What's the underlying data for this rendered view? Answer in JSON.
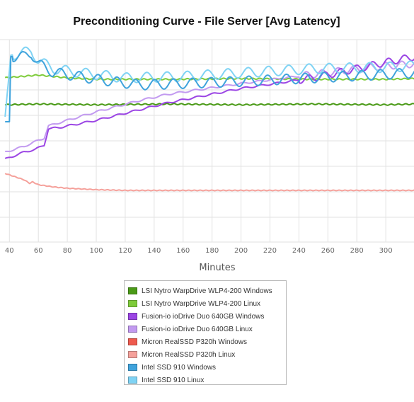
{
  "chart_data": {
    "type": "line",
    "title": "Preconditioning Curve - File Server [Avg Latency]",
    "xlabel": "Minutes",
    "ylabel": "",
    "x_ticks": [
      40,
      60,
      80,
      100,
      120,
      140,
      160,
      180,
      200,
      220,
      240,
      260,
      280,
      300
    ],
    "grid": true,
    "legend_position": "bottom",
    "series": [
      {
        "name": "LSI Nytro WarpDrive WLP4-200 Windows",
        "color": "#4a9a17",
        "points": [
          [
            37,
            148
          ],
          [
            60,
            147
          ],
          [
            100,
            148
          ],
          [
            150,
            147
          ],
          [
            200,
            148
          ],
          [
            250,
            147
          ],
          [
            300,
            148
          ],
          [
            320,
            147
          ]
        ]
      },
      {
        "name": "LSI Nytro WarpDrive WLP4-200 Linux",
        "color": "#7ecb3a",
        "points": [
          [
            37,
            110
          ],
          [
            60,
            106
          ],
          [
            80,
            110
          ],
          [
            100,
            112
          ],
          [
            150,
            112
          ],
          [
            200,
            111
          ],
          [
            250,
            112
          ],
          [
            300,
            112
          ],
          [
            320,
            111
          ]
        ]
      },
      {
        "name": "Fusion-io ioDrive Duo 640GB Windows",
        "color": "#9b45e4",
        "points": [
          [
            37,
            225
          ],
          [
            50,
            215
          ],
          [
            58,
            211
          ],
          [
            64,
            205
          ],
          [
            67,
            182
          ],
          [
            75,
            180
          ],
          [
            100,
            170
          ],
          [
            150,
            145
          ],
          [
            200,
            125
          ],
          [
            250,
            110
          ],
          [
            280,
            97
          ],
          [
            300,
            88
          ],
          [
            320,
            80
          ]
        ]
      },
      {
        "name": "Fusion-io ioDrive Duo 640GB Linux",
        "color": "#c29af0",
        "points": [
          [
            37,
            215
          ],
          [
            50,
            207
          ],
          [
            58,
            200
          ],
          [
            64,
            195
          ],
          [
            67,
            178
          ],
          [
            80,
            170
          ],
          [
            100,
            158
          ],
          [
            130,
            142
          ],
          [
            150,
            133
          ],
          [
            200,
            118
          ],
          [
            250,
            105
          ],
          [
            290,
            95
          ],
          [
            320,
            90
          ]
        ]
      },
      {
        "name": "Micron RealSSD P320h Windows",
        "color": "#ee5a4e",
        "points": []
      },
      {
        "name": "Micron RealSSD P320h Linux",
        "color": "#f5a19b",
        "points": [
          [
            37,
            245
          ],
          [
            50,
            254
          ],
          [
            54,
            259
          ],
          [
            56,
            257
          ],
          [
            60,
            261
          ],
          [
            70,
            264
          ],
          [
            80,
            266
          ],
          [
            100,
            268
          ],
          [
            120,
            269
          ],
          [
            200,
            269
          ],
          [
            300,
            269
          ],
          [
            320,
            269
          ]
        ]
      },
      {
        "name": "Intel SSD 910 Windows",
        "color": "#3fa3dc",
        "points": [
          [
            37,
            172
          ],
          [
            40,
            172
          ],
          [
            41,
            80
          ],
          [
            50,
            80
          ],
          [
            55,
            75
          ],
          [
            60,
            90
          ],
          [
            70,
            102
          ],
          [
            100,
            112
          ],
          [
            130,
            120
          ],
          [
            160,
            118
          ],
          [
            200,
            115
          ],
          [
            250,
            110
          ],
          [
            300,
            105
          ],
          [
            320,
            103
          ]
        ]
      },
      {
        "name": "Intel SSD 910 Linux",
        "color": "#7fd3f4",
        "points": [
          [
            37,
            165
          ],
          [
            41,
            78
          ],
          [
            48,
            75
          ],
          [
            55,
            72
          ],
          [
            60,
            85
          ],
          [
            70,
            97
          ],
          [
            90,
            103
          ],
          [
            120,
            110
          ],
          [
            160,
            108
          ],
          [
            200,
            103
          ],
          [
            250,
            97
          ],
          [
            300,
            95
          ],
          [
            320,
            93
          ]
        ]
      }
    ]
  }
}
